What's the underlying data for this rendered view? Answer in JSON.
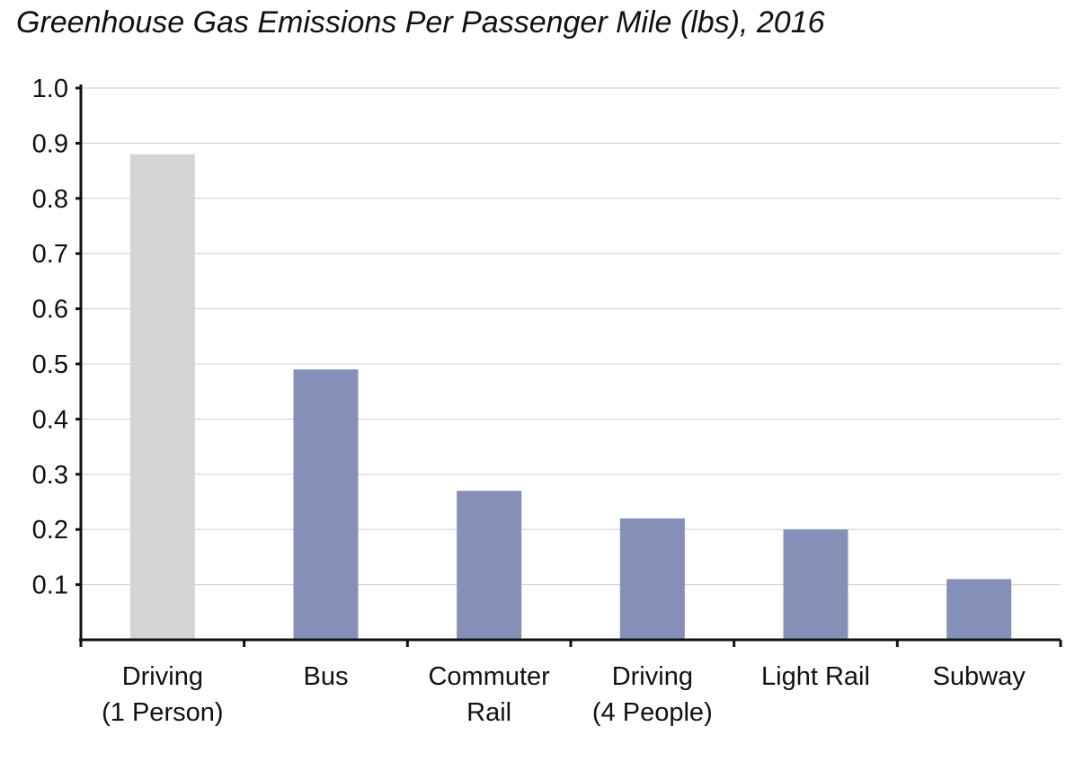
{
  "chart_data": {
    "type": "bar",
    "title": "Greenhouse Gas Emissions Per Passenger Mile (lbs), 2016",
    "categories": [
      [
        "Driving",
        "(1 Person)"
      ],
      [
        "Bus"
      ],
      [
        "Commuter",
        "Rail"
      ],
      [
        "Driving",
        "(4 People)"
      ],
      [
        "Light Rail"
      ],
      [
        "Subway"
      ]
    ],
    "values": [
      0.88,
      0.49,
      0.27,
      0.22,
      0.2,
      0.11
    ],
    "bar_colors": [
      "#d3d4d6",
      "#8590b8",
      "#8590b8",
      "#8590b8",
      "#8590b8",
      "#8590b8"
    ],
    "ylim": [
      0,
      1.0
    ],
    "yticks": [
      "0.1",
      "0.2",
      "0.3",
      "0.4",
      "0.5",
      "0.6",
      "0.7",
      "0.8",
      "0.9",
      "1.0"
    ],
    "ytick_values": [
      0.1,
      0.2,
      0.3,
      0.4,
      0.5,
      0.6,
      0.7,
      0.8,
      0.9,
      1.0
    ],
    "grid": true,
    "legend": "none"
  }
}
